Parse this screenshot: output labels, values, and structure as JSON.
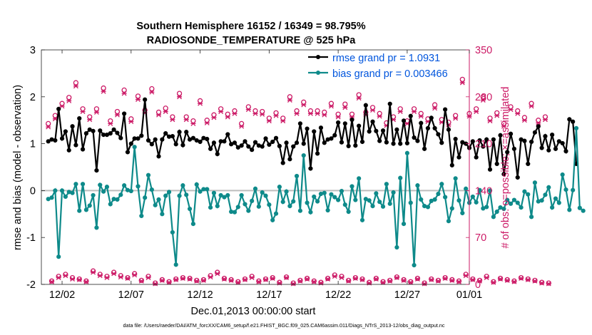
{
  "chart_data": {
    "type": "line",
    "title": "Southern Hemisphere 16152 / 16349 = 98.795%",
    "subtitle": "RADIOSONDE_TEMPERATURE @ 525 hPa",
    "xlabel": "Dec.01,2013 00:00:00 start",
    "ylabel_left": "rmse and bias (model - observation)",
    "ylabel_right": "# of obs: o=possible; ×=assimilated",
    "footer": "data file: /Users/raeder/DAI/ATM_forcXX/CAM6_setup/f.e21.FHIST_BGC.f09_025.CAM6assim.011/Diags_NTrS_2013-12/obs_diag_output.nc",
    "ylim_left": [
      -2,
      3
    ],
    "ylim_right": [
      0,
      350
    ],
    "yticks_left": [
      "-2",
      "-1",
      "0",
      "1",
      "2",
      "3"
    ],
    "yticks_right": [
      "0",
      "70",
      "140",
      "210",
      "280",
      "350"
    ],
    "xlim": [
      0.5,
      31.5
    ],
    "xticks": [
      {
        "x": 2,
        "label": "12/02"
      },
      {
        "x": 7,
        "label": "12/07"
      },
      {
        "x": 12,
        "label": "12/12"
      },
      {
        "x": 17,
        "label": "12/17"
      },
      {
        "x": 22,
        "label": "12/22"
      },
      {
        "x": 27,
        "label": "12/27"
      },
      {
        "x": 32,
        "label": "01/01"
      }
    ],
    "x_step": 0.25,
    "x_start": 1.0,
    "series": [
      {
        "name": "rmse grand pr = 1.0931",
        "color": "#000000",
        "values": [
          1.05,
          1.09,
          1.07,
          1.74,
          1.11,
          1.26,
          0.86,
          1.37,
          0.97,
          1.54,
          0.88,
          1.22,
          1.3,
          1.27,
          0.43,
          1.28,
          1.19,
          1.19,
          1.22,
          1.3,
          1.23,
          1.12,
          1.64,
          0.82,
          1.0,
          1.11,
          1.11,
          1.17,
          1.94,
          1.07,
          0.99,
          1.09,
          0.73,
          1.09,
          1.22,
          1.15,
          1.16,
          0.99,
          1.25,
          0.97,
          1.25,
          1.09,
          1.12,
          1.07,
          1.04,
          1.12,
          1.1,
          0.89,
          1.02,
          0.78,
          1.05,
          1.05,
          1.2,
          0.99,
          1.02,
          0.92,
          0.96,
          1.05,
          0.94,
          0.87,
          1.03,
          0.96,
          0.94,
          1.11,
          0.98,
          1.04,
          1.12,
          0.95,
          0.59,
          1.02,
          0.67,
          0.94,
          1.02,
          1.43,
          1.0,
          1.32,
          0.47,
          1.26,
          0.79,
          1.34,
          1.02,
          1.09,
          1.11,
          1.18,
          1.45,
          1.03,
          1.43,
          0.95,
          1.51,
          0.96,
          1.38,
          1.04,
          1.82,
          1.26,
          1.47,
          1.27,
          1.06,
          1.28,
          1.03,
          1.85,
          1.0,
          1.3,
          1.0,
          1.49,
          1.01,
          1.59,
          1.13,
          1.06,
          1.44,
          0.89,
          1.33,
          1.55,
          1.33,
          1.2,
          1.02,
          1.73,
          1.3,
          0.54,
          1.1,
          0.71,
          1.03,
          1.0,
          0.91,
          1.05,
          0.71,
          1.07,
          0.94,
          1.09,
          0.45,
          1.09,
          0.57,
          1.18,
          0.35,
          0.82,
          1.21,
          0.89,
          0.28,
          1.09,
          1.06,
          0.57,
          1.04,
          1.24,
          1.37,
          0.91,
          1.16,
          0.86,
          1.19,
          0.89,
          1.05,
          1.01,
          0.84,
          1.52,
          1.47,
          0.57
        ]
      },
      {
        "name": "bias grand pr = 0.003466",
        "color": "#0e8a8a",
        "values": [
          -0.18,
          -0.15,
          0.0,
          -1.41,
          0.0,
          -0.13,
          -0.03,
          -0.05,
          0.14,
          -0.43,
          0.14,
          -0.41,
          -0.32,
          -0.1,
          -0.79,
          0.12,
          -0.02,
          0.08,
          -0.29,
          -0.18,
          -0.19,
          -0.09,
          0.11,
          0.01,
          -0.01,
          0.93,
          0.09,
          -0.54,
          -0.15,
          0.33,
          0.02,
          -0.31,
          -0.19,
          -0.5,
          -0.11,
          -0.03,
          -0.89,
          -1.58,
          -0.11,
          0.11,
          -0.09,
          -0.39,
          -0.71,
          0.13,
          -0.02,
          0.03,
          0.03,
          -0.36,
          -0.05,
          -0.33,
          -0.1,
          -0.14,
          -0.1,
          -0.45,
          -0.46,
          -0.35,
          -0.1,
          -0.29,
          -0.43,
          -0.22,
          0.04,
          -0.34,
          -0.04,
          -0.11,
          -0.3,
          -0.63,
          -0.49,
          0.08,
          -0.24,
          -0.02,
          -0.33,
          -0.23,
          0.31,
          -0.43,
          0.75,
          -0.26,
          -0.46,
          -0.13,
          -0.23,
          -0.07,
          -0.05,
          -0.42,
          -0.08,
          -0.14,
          -0.2,
          -0.01,
          -0.3,
          -0.45,
          0.09,
          -0.2,
          0.26,
          -0.63,
          -0.18,
          -0.21,
          -0.33,
          -0.06,
          -0.24,
          -0.34,
          0.14,
          -0.28,
          -0.04,
          -1.21,
          0.27,
          -0.71,
          0.8,
          -0.26,
          -1.59,
          0.11,
          -0.19,
          -0.33,
          -0.35,
          -0.22,
          -0.19,
          -0.07,
          0.14,
          -0.14,
          -0.65,
          -0.38,
          0.26,
          -0.21,
          -0.48,
          0.04,
          -0.26,
          -0.13,
          -0.25,
          0.01,
          -0.38,
          -0.35,
          0.0,
          -0.56,
          -0.45,
          -0.36,
          -0.39,
          -0.2,
          -0.28,
          -0.2,
          -0.26,
          -0.36,
          -0.02,
          -0.08,
          -0.56,
          0.17,
          -0.23,
          -0.21,
          -0.09,
          0.07,
          -0.36,
          -0.17,
          -0.26,
          0.34,
          0.02,
          -0.41,
          0.01,
          1.33,
          -0.37,
          -0.43
        ]
      }
    ],
    "zero_line": {
      "value": 0,
      "color": "#bdbdbd"
    },
    "obs_possible": {
      "marker": "o",
      "color": "#cc1a66",
      "values": [
        240,
        5,
        252,
        12,
        270,
        15,
        279,
        10,
        301,
        8,
        262,
        5,
        250,
        20,
        262,
        15,
        293,
        12,
        244,
        18,
        258,
        13,
        290,
        10,
        247,
        16,
        281,
        6,
        260,
        12,
        292,
        2,
        257,
        7,
        263,
        4,
        250,
        8,
        285,
        10,
        250,
        9,
        244,
        6,
        274,
        7,
        245,
        13,
        253,
        18,
        262,
        9,
        254,
        7,
        259,
        4,
        240,
        8,
        265,
        12,
        259,
        5,
        258,
        8,
        248,
        10,
        256,
        3,
        248,
        11,
        280,
        2,
        259,
        6,
        272,
        9,
        259,
        5,
        259,
        3,
        257,
        9,
        270,
        14,
        254,
        12,
        269,
        6,
        254,
        10,
        283,
        8,
        257,
        3,
        264,
        9,
        255,
        4,
        241,
        6,
        250,
        11,
        262,
        7,
        244,
        4,
        262,
        9,
        255,
        2,
        247,
        8,
        268,
        6,
        246,
        10,
        242,
        7,
        252,
        5,
        306,
        15,
        255,
        8,
        262,
        6,
        280,
        12,
        248,
        4,
        256,
        9,
        240,
        7,
        265,
        5,
        259,
        10,
        249,
        8,
        270,
        6,
        245,
        3,
        250,
        2
      ]
    },
    "obs_assimilated": {
      "marker": "x",
      "color": "#cc1a66",
      "values": [
        235,
        4,
        247,
        10,
        266,
        13,
        274,
        8,
        296,
        7,
        258,
        4,
        246,
        18,
        257,
        13,
        288,
        10,
        240,
        16,
        253,
        11,
        285,
        9,
        243,
        14,
        276,
        5,
        256,
        10,
        287,
        1,
        253,
        6,
        258,
        3,
        246,
        7,
        280,
        9,
        246,
        8,
        240,
        5,
        270,
        6,
        241,
        11,
        249,
        16,
        258,
        8,
        250,
        6,
        255,
        3,
        236,
        7,
        261,
        10,
        255,
        4,
        254,
        7,
        244,
        9,
        252,
        2,
        244,
        10,
        275,
        1,
        255,
        5,
        268,
        8,
        255,
        4,
        255,
        2,
        253,
        8,
        266,
        12,
        250,
        10,
        264,
        5,
        250,
        9,
        278,
        7,
        253,
        2,
        260,
        8,
        251,
        3,
        237,
        5,
        246,
        10,
        258,
        6,
        240,
        3,
        258,
        8,
        251,
        1,
        243,
        7,
        263,
        5,
        242,
        9,
        238,
        6,
        248,
        4,
        301,
        13,
        251,
        7,
        258,
        5,
        275,
        10,
        244,
        3,
        252,
        8,
        236,
        6,
        261,
        4,
        255,
        9,
        245,
        7,
        266,
        5,
        241,
        2,
        246,
        1
      ]
    },
    "legend": {
      "placement": "top-right",
      "items": [
        "rmse grand pr = 1.0931",
        "bias grand pr = 0.003466"
      ],
      "text_color": "#0055dd"
    },
    "left_axis_color": "#000000",
    "right_axis_color": "#cc1a66"
  }
}
